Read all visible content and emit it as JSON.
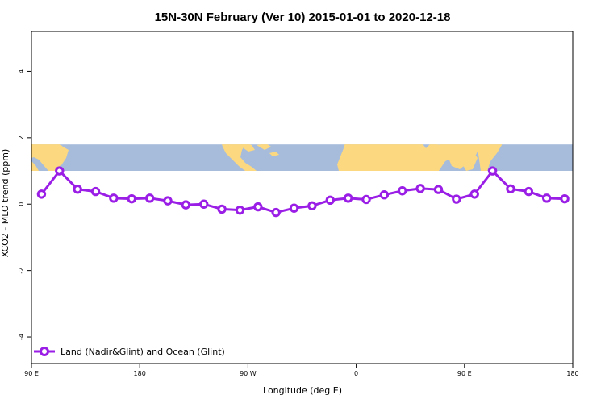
{
  "chart_data": {
    "type": "line",
    "title": "15N-30N February (Ver 10)   2015-01-01 to 2020-12-18",
    "xlabel": "Longitude (deg E)",
    "ylabel": "XCO2 - MLO trend (ppm)",
    "xlim": [
      -90,
      180
    ],
    "ylim": [
      -4.8,
      5.2
    ],
    "x_ticks": [
      {
        "value": -90,
        "label": "90 E"
      },
      {
        "value": -36,
        "label": "180"
      },
      {
        "value": 18,
        "label": "90 W"
      },
      {
        "value": 72,
        "label": "0"
      },
      {
        "value": 126,
        "label": "90 E"
      },
      {
        "value": 180,
        "label": "180"
      }
    ],
    "y_ticks": [
      {
        "value": 4,
        "label": "4"
      },
      {
        "value": 2,
        "label": "2"
      },
      {
        "value": 0,
        "label": "0"
      },
      {
        "value": -2,
        "label": "-2"
      },
      {
        "value": -4,
        "label": "-4"
      }
    ],
    "map_band": {
      "ymin": 1.0,
      "ymax": 1.8,
      "ocean_color": "#a7bcdb",
      "land_color": "#fcd980"
    },
    "series": [
      {
        "name": "Land (Nadir&Glint) and Ocean (Glint)",
        "color": "#9a1ee6",
        "x": [
          -85,
          -76,
          -67,
          -58,
          -49,
          -40,
          -31,
          -22,
          -13,
          -4,
          5,
          14,
          23,
          32,
          41,
          50,
          59,
          68,
          77,
          86,
          95,
          104,
          113,
          122,
          131,
          140,
          149,
          158,
          167,
          176
        ],
        "values": [
          0.3,
          1.0,
          0.45,
          0.38,
          0.18,
          0.16,
          0.18,
          0.1,
          -0.02,
          0.0,
          -0.15,
          -0.18,
          -0.08,
          -0.25,
          -0.12,
          -0.05,
          0.12,
          0.18,
          0.14,
          0.28,
          0.4,
          0.47,
          0.44,
          0.15,
          0.3,
          1.0,
          0.46,
          0.38,
          0.18,
          0.16
        ]
      }
    ],
    "legend_position": "bottom-left"
  }
}
